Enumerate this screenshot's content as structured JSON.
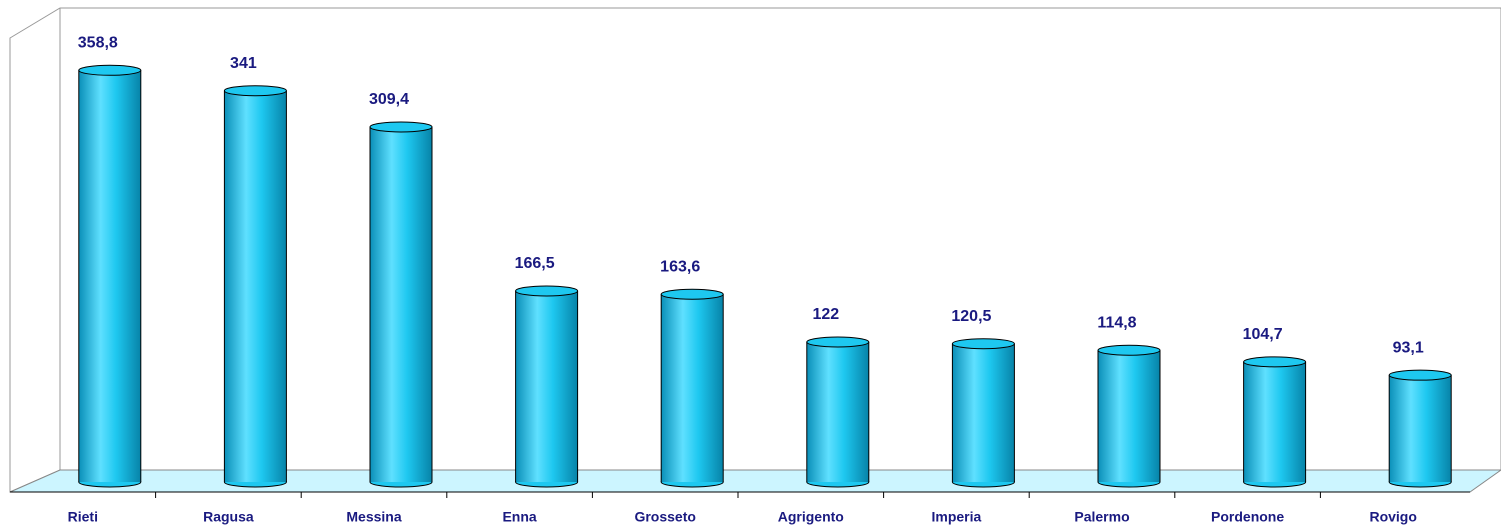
{
  "chart_data": {
    "type": "bar",
    "categories": [
      "Rieti",
      "Ragusa",
      "Messina",
      "Enna",
      "Grosseto",
      "Agrigento",
      "Imperia",
      "Palermo",
      "Pordenone",
      "Rovigo"
    ],
    "values": [
      358.8,
      341,
      309.4,
      166.5,
      163.6,
      122,
      120.5,
      114.8,
      104.7,
      93.1
    ],
    "value_labels": [
      "358,8",
      "341",
      "309,4",
      "166,5",
      "163,6",
      "122",
      "120,5",
      "114,8",
      "104,7",
      "93,1"
    ],
    "color": "#1ec8f0",
    "ylim": [
      0,
      400
    ]
  }
}
